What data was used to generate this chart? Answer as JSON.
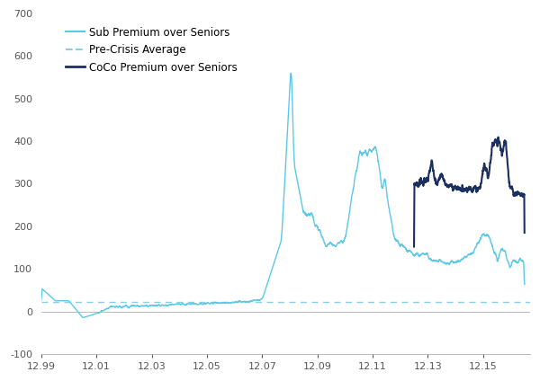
{
  "xlim": [
    1999.0,
    2016.7
  ],
  "ylim": [
    -100,
    700
  ],
  "yticks": [
    -100,
    0,
    100,
    200,
    300,
    400,
    500,
    600,
    700
  ],
  "xtick_labels": [
    "12.99",
    "12.01",
    "12.03",
    "12.05",
    "12.07",
    "12.09",
    "12.11",
    "12.13",
    "12.15"
  ],
  "xtick_positions": [
    1999,
    2001,
    2003,
    2005,
    2007,
    2009,
    2011,
    2013,
    2015
  ],
  "pre_crisis_avg": 22,
  "pre_crisis_color": "#85cfe8",
  "sub_color": "#5bc8e8",
  "coco_color": "#1b3060",
  "legend_labels": [
    "Sub Premium over Seniors",
    "Pre-Crisis Average",
    "CoCo Premium over Seniors"
  ],
  "background_color": "#ffffff"
}
